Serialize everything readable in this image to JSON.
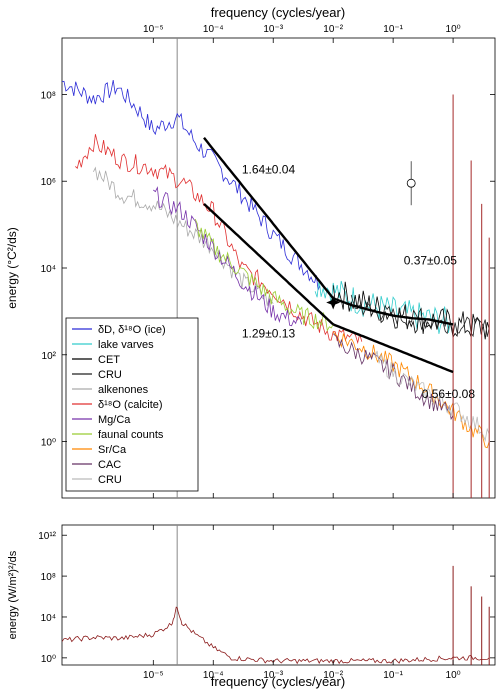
{
  "chart_data": [
    {
      "type": "line",
      "xscale": "log",
      "yscale": "log",
      "xlim": [
        3e-07,
        5
      ],
      "ylim": [
        0.05,
        2000000000.0
      ],
      "x_top_label": "frequency (cycles/year)",
      "ylabel": "energy (°C²/ds)",
      "x_ticks": [
        {
          "value": 1e-05,
          "label": "10⁻⁵"
        },
        {
          "value": 0.0001,
          "label": "10⁻⁴"
        },
        {
          "value": 0.001,
          "label": "10⁻³"
        },
        {
          "value": 0.01,
          "label": "10⁻²"
        },
        {
          "value": 0.1,
          "label": "10⁻¹"
        },
        {
          "value": 1,
          "label": "10⁰"
        }
      ],
      "y_ticks": [
        {
          "value": 1,
          "label": "10⁰"
        },
        {
          "value": 100,
          "label": "10²"
        },
        {
          "value": 10000,
          "label": "10⁴"
        },
        {
          "value": 1000000,
          "label": "10⁶"
        },
        {
          "value": 100000000,
          "label": "10⁸"
        }
      ],
      "vertical_reference_line_x": 2.5e-05,
      "series": [
        {
          "name": "δD, δ¹⁸O (ice)",
          "color": "#2b2bd6",
          "x": [
            3e-07,
            1e-06,
            2.5e-06,
            6e-06,
            1e-05,
            2.5e-05,
            5e-05,
            0.0001,
            0.0002,
            0.0005,
            0.001,
            0.002,
            0.004,
            0.006
          ],
          "y": [
            200000000,
            80000000,
            150000000,
            40000000,
            15000000,
            30000000,
            8000000,
            3000000,
            1000000,
            200000,
            60000,
            20000,
            8000,
            4000
          ]
        },
        {
          "name": "lake varves",
          "color": "#33cccc",
          "x": [
            0.005,
            0.01,
            0.02,
            0.05,
            0.1,
            0.2,
            0.5,
            0.9
          ],
          "y": [
            5000,
            3000,
            2000,
            1300,
            1000,
            800,
            650,
            550
          ]
        },
        {
          "name": "CET",
          "color": "#000000",
          "x": [
            0.01,
            0.02,
            0.05,
            0.1,
            0.2,
            0.5,
            1,
            2,
            4
          ],
          "y": [
            3000,
            2000,
            1200,
            900,
            700,
            600,
            500,
            450,
            400
          ]
        },
        {
          "name": "CRU",
          "color": "#222222",
          "x": [
            0.02,
            0.05,
            0.1,
            0.3,
            1,
            2,
            4
          ],
          "y": [
            1500,
            1000,
            800,
            600,
            500,
            450,
            420
          ]
        },
        {
          "name": "alkenones",
          "color": "#aaaaaa",
          "x": [
            1e-06,
            3e-06,
            1e-05,
            3e-05,
            0.0001,
            0.0003,
            0.001
          ],
          "y": [
            2000000,
            500000,
            300000,
            100000,
            30000,
            5000,
            1500
          ]
        },
        {
          "name": "δ¹⁸O (calcite)",
          "color": "#e03030",
          "x": [
            5e-07,
            1e-06,
            3e-06,
            1e-05,
            3e-05,
            0.0001,
            0.0003,
            0.001,
            0.003,
            0.01,
            0.03
          ],
          "y": [
            2000000,
            8000000,
            3000000,
            2000000,
            1000000,
            200000,
            10000,
            3000,
            800,
            300,
            200
          ]
        },
        {
          "name": "Mg/Ca",
          "color": "#7733aa",
          "x": [
            1e-05,
            3e-05,
            0.0001,
            0.0003,
            0.001,
            0.003
          ],
          "y": [
            500000,
            200000,
            30000,
            5000,
            1000,
            500
          ]
        },
        {
          "name": "faunal counts",
          "color": "#99cc33",
          "x": [
            5e-05,
            0.0001,
            0.0003,
            0.001,
            0.003,
            0.01
          ],
          "y": [
            100000,
            30000,
            8000,
            2000,
            800,
            500
          ]
        },
        {
          "name": "Sr/Ca",
          "color": "#ff8800",
          "x": [
            0.01,
            0.03,
            0.1,
            0.3,
            1,
            2,
            4
          ],
          "y": [
            300,
            150,
            60,
            20,
            5,
            2,
            1
          ]
        },
        {
          "name": "CAC",
          "color": "#663366",
          "x": [
            0.01,
            0.03,
            0.1,
            0.3,
            1
          ],
          "y": [
            200,
            100,
            40,
            12,
            4
          ]
        },
        {
          "name": "CRU",
          "color": "#bbbbbb",
          "x": [
            0.05,
            0.1,
            0.3,
            1,
            2,
            4
          ],
          "y": [
            80,
            40,
            15,
            6,
            3,
            1.5
          ]
        }
      ],
      "fit_lines": [
        {
          "label": "1.64±0.04",
          "x": [
            7e-05,
            0.01
          ],
          "y": [
            10000000,
            2000
          ]
        },
        {
          "label": "0.37±0.05",
          "x": [
            0.01,
            0.02,
            0.05,
            0.1,
            0.2,
            0.4,
            1
          ],
          "y": [
            2000,
            1400,
            1000,
            800,
            700,
            650,
            500
          ]
        },
        {
          "label": "1.29±0.13",
          "x": [
            7e-05,
            0.01
          ],
          "y": [
            300000,
            500
          ]
        },
        {
          "label": "0.56±0.08",
          "x": [
            0.01,
            1
          ],
          "y": [
            500,
            40
          ]
        }
      ],
      "markers": [
        {
          "x": 0.01,
          "y": 1600,
          "style": "star"
        },
        {
          "x": 0.2,
          "y": 900000,
          "style": "circle-errorbar"
        }
      ],
      "annual_peaks": [
        {
          "x": 1,
          "y": 100000000
        },
        {
          "x": 2,
          "y": 3000000
        },
        {
          "x": 3,
          "y": 300000
        },
        {
          "x": 4,
          "y": 50000
        }
      ]
    },
    {
      "type": "line",
      "xscale": "log",
      "yscale": "log",
      "xlim": [
        3e-07,
        5
      ],
      "ylim": [
        0.2,
        10000000000000.0
      ],
      "xlabel": "frequency (cycles/year)",
      "ylabel": "energy (W/m²)²/ds",
      "x_ticks": [
        {
          "value": 1e-05,
          "label": "10⁻⁵"
        },
        {
          "value": 0.0001,
          "label": "10⁻⁴"
        },
        {
          "value": 0.001,
          "label": "10⁻³"
        },
        {
          "value": 0.01,
          "label": "10⁻²"
        },
        {
          "value": 0.1,
          "label": "10⁻¹"
        },
        {
          "value": 1,
          "label": "10⁰"
        }
      ],
      "y_ticks": [
        {
          "value": 1,
          "label": "10⁰"
        },
        {
          "value": 10000,
          "label": "10⁴"
        },
        {
          "value": 100000000,
          "label": "10⁸"
        },
        {
          "value": 1000000000000,
          "label": "10¹²"
        }
      ],
      "vertical_reference_line_x": 2.5e-05,
      "series": [
        {
          "color": "#8b1a1a",
          "x": [
            3e-07,
            1e-06,
            3e-06,
            1e-05,
            2e-05,
            2.5e-05,
            3e-05,
            5e-05,
            0.0001,
            0.0002,
            0.001,
            0.01,
            0.1,
            1,
            4
          ],
          "y": [
            50,
            100,
            80,
            200,
            2000,
            100000,
            3000,
            200,
            10,
            1,
            0.5,
            0.5,
            0.5,
            1,
            1
          ]
        }
      ],
      "annual_peaks": [
        {
          "x": 1,
          "y": 1000000000
        },
        {
          "x": 2,
          "y": 10000000
        },
        {
          "x": 3,
          "y": 1000000
        },
        {
          "x": 4,
          "y": 100000
        }
      ]
    }
  ]
}
